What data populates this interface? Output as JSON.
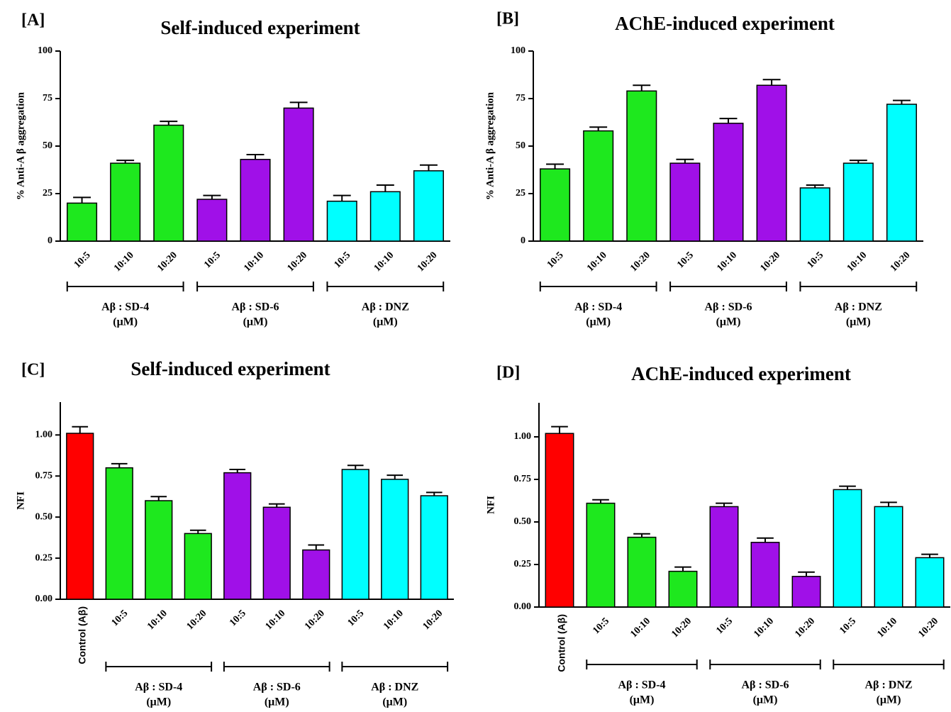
{
  "chart_data": [
    {
      "type": "bar",
      "panel": "[A]",
      "title": "Self-induced experiment",
      "ylabel": "% Anti-A β aggregation",
      "categories": [
        "10:5",
        "10:10",
        "10:20",
        "10:5",
        "10:10",
        "10:20",
        "10:5",
        "10:10",
        "10:20"
      ],
      "values": [
        20,
        41,
        61,
        22,
        43,
        70,
        21,
        26,
        37
      ],
      "errors": [
        3,
        1.5,
        2,
        2,
        2.5,
        3,
        3,
        3.5,
        3
      ],
      "colors": [
        "#1ee81e",
        "#1ee81e",
        "#1ee81e",
        "#a010e8",
        "#a010e8",
        "#a010e8",
        "#00ffff",
        "#00ffff",
        "#00ffff"
      ],
      "group_labels": [
        "Aβ : SD-4",
        "Aβ : SD-6",
        "Aβ : DNZ"
      ],
      "group_units": [
        "(μM)",
        "(μM)",
        "(μM)"
      ],
      "ylim": [
        0,
        100
      ],
      "yticks": [
        0,
        25,
        50,
        75,
        100
      ]
    },
    {
      "type": "bar",
      "panel": "[B]",
      "title": "AChE-induced experiment",
      "ylabel": "% Anti-A β aggregation",
      "categories": [
        "10:5",
        "10:10",
        "10:20",
        "10:5",
        "10:10",
        "10:20",
        "10:5",
        "10:10",
        "10:20"
      ],
      "values": [
        38,
        58,
        79,
        41,
        62,
        82,
        28,
        41,
        72
      ],
      "errors": [
        2.5,
        2,
        3,
        2,
        2.5,
        3,
        1.5,
        1.5,
        2
      ],
      "colors": [
        "#1ee81e",
        "#1ee81e",
        "#1ee81e",
        "#a010e8",
        "#a010e8",
        "#a010e8",
        "#00ffff",
        "#00ffff",
        "#00ffff"
      ],
      "group_labels": [
        "Aβ : SD-4",
        "Aβ : SD-6",
        "Aβ : DNZ"
      ],
      "group_units": [
        "(μM)",
        "(μM)",
        "(μM)"
      ],
      "ylim": [
        0,
        100
      ],
      "yticks": [
        0,
        25,
        50,
        75,
        100
      ]
    },
    {
      "type": "bar",
      "panel": "[C]",
      "title": "Self-induced experiment",
      "ylabel": "NFI",
      "categories": [
        "Control (Aβ)",
        "10:5",
        "10:10",
        "10:20",
        "10:5",
        "10:10",
        "10:20",
        "10:5",
        "10:10",
        "10:20"
      ],
      "values": [
        1.01,
        0.8,
        0.6,
        0.4,
        0.77,
        0.56,
        0.3,
        0.79,
        0.73,
        0.63
      ],
      "errors": [
        0.04,
        0.025,
        0.025,
        0.02,
        0.02,
        0.02,
        0.03,
        0.025,
        0.025,
        0.02
      ],
      "colors": [
        "#ff0000",
        "#1ee81e",
        "#1ee81e",
        "#1ee81e",
        "#a010e8",
        "#a010e8",
        "#a010e8",
        "#00ffff",
        "#00ffff",
        "#00ffff"
      ],
      "group_labels": [
        "Aβ : SD-4",
        "Aβ : SD-6",
        "Aβ : DNZ"
      ],
      "group_units": [
        "(μM)",
        "(μM)",
        "(μM)"
      ],
      "ylim": [
        0,
        1.2
      ],
      "yticks": [
        {
          "value": 0,
          "label": "0.00"
        },
        {
          "value": 0.25,
          "label": "0.25"
        },
        {
          "value": 0.5,
          "label": "0.50"
        },
        {
          "value": 0.75,
          "label": "0.75"
        },
        {
          "value": 1,
          "label": "1.00"
        }
      ]
    },
    {
      "type": "bar",
      "panel": "[D]",
      "title": "AChE-induced experiment",
      "ylabel": "NFI",
      "categories": [
        "Control (Aβ)",
        "10:5",
        "10:10",
        "10:20",
        "10:5",
        "10:10",
        "10:20",
        "10:5",
        "10:10",
        "10:20"
      ],
      "values": [
        1.02,
        0.61,
        0.41,
        0.21,
        0.59,
        0.38,
        0.18,
        0.69,
        0.59,
        0.29
      ],
      "errors": [
        0.04,
        0.02,
        0.02,
        0.025,
        0.02,
        0.025,
        0.025,
        0.02,
        0.025,
        0.02
      ],
      "colors": [
        "#ff0000",
        "#1ee81e",
        "#1ee81e",
        "#1ee81e",
        "#a010e8",
        "#a010e8",
        "#a010e8",
        "#00ffff",
        "#00ffff",
        "#00ffff"
      ],
      "group_labels": [
        "Aβ : SD-4",
        "Aβ : SD-6",
        "Aβ : DNZ"
      ],
      "group_units": [
        "(μM)",
        "(μM)",
        "(μM)"
      ],
      "ylim": [
        0,
        1.2
      ],
      "yticks": [
        {
          "value": 0,
          "label": "0.00"
        },
        {
          "value": 0.25,
          "label": "0.25"
        },
        {
          "value": 0.5,
          "label": "0.50"
        },
        {
          "value": 0.75,
          "label": "0.75"
        },
        {
          "value": 1,
          "label": "1.00"
        }
      ]
    }
  ]
}
